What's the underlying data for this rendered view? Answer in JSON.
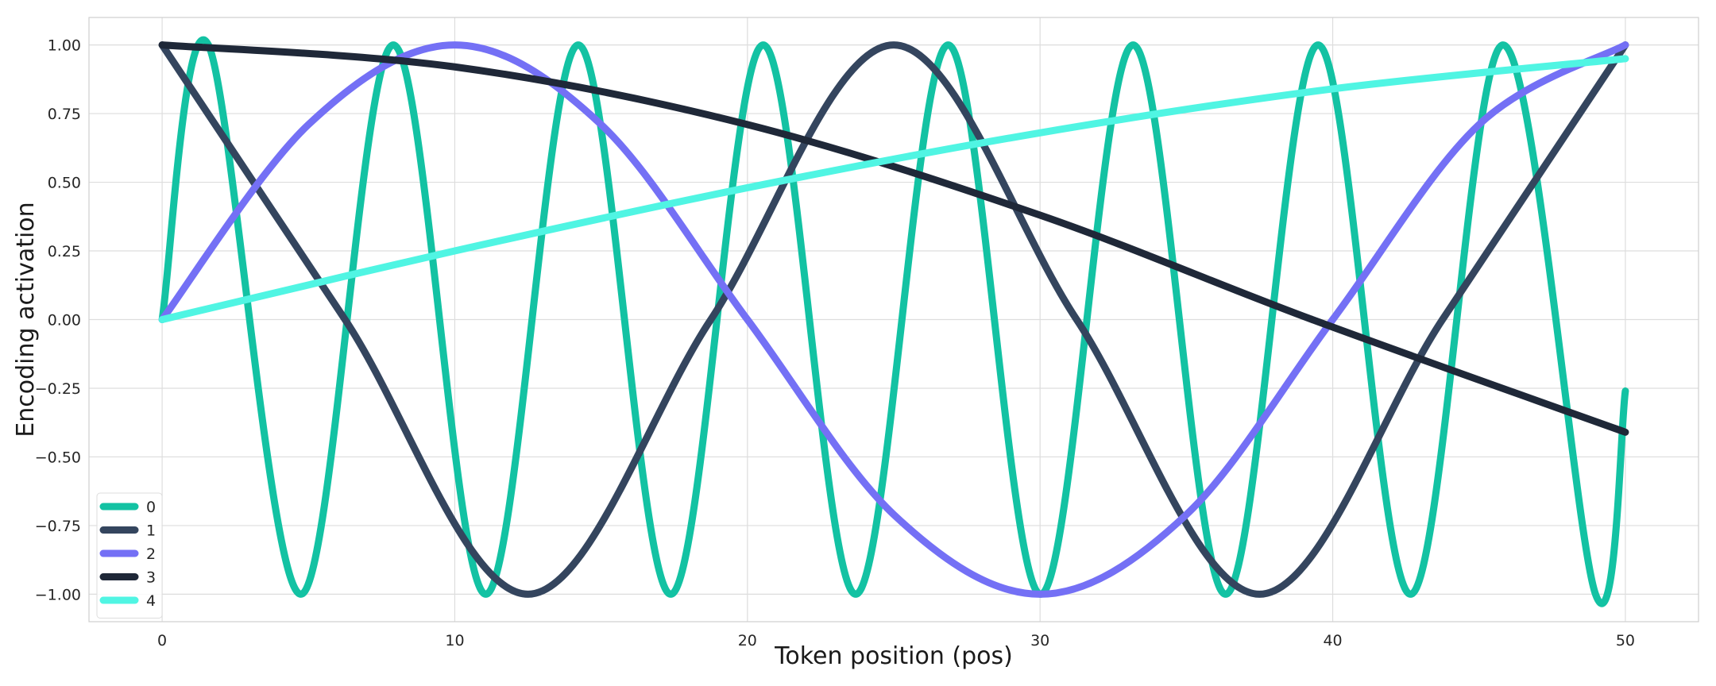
{
  "chart_data": {
    "type": "line",
    "title": "",
    "xlabel": "Token position (pos)",
    "ylabel": "Encoding activation",
    "xlim": [
      -2.5,
      52.5
    ],
    "ylim": [
      -1.1,
      1.1
    ],
    "x_ticks": [
      0,
      10,
      20,
      30,
      40,
      50
    ],
    "y_ticks": [
      1.0,
      0.75,
      0.5,
      0.25,
      0.0,
      -0.25,
      -0.5,
      -0.75,
      -1.0
    ],
    "y_tick_labels": [
      "1.00",
      "0.75",
      "0.50",
      "0.25",
      "0.00",
      "−0.25",
      "−0.50",
      "−0.75",
      "−1.00"
    ],
    "x_range": [
      0,
      50
    ],
    "grid": true,
    "legend_position": "bottom-left",
    "series": [
      {
        "name": "0",
        "color": "#13c2a3",
        "x": [
          0,
          1.58,
          4.74,
          7.9,
          11.06,
          14.22,
          17.38,
          20.54,
          23.7,
          26.86,
          30.02,
          33.18,
          36.34,
          39.5,
          42.66,
          45.82,
          48.98,
          50
        ],
        "y": [
          0.0,
          1.0,
          -1.0,
          1.0,
          -1.0,
          1.0,
          -1.0,
          1.0,
          -1.0,
          1.0,
          -1.0,
          1.0,
          -1.0,
          1.0,
          -1.0,
          1.0,
          -1.0,
          -0.26
        ]
      },
      {
        "name": "1",
        "color": "#34455e",
        "x": [
          0,
          6.25,
          12.5,
          18.75,
          25,
          31.25,
          37.5,
          43.75,
          50
        ],
        "y": [
          1.0,
          0.0,
          -1.0,
          0.0,
          1.0,
          0.0,
          -1.0,
          0.0,
          1.0
        ]
      },
      {
        "name": "2",
        "color": "#7470f5",
        "x": [
          0,
          5,
          10,
          15,
          20,
          25,
          30,
          35,
          40,
          45,
          50
        ],
        "y": [
          0.0,
          0.71,
          1.0,
          0.71,
          0.0,
          -0.71,
          -1.0,
          -0.71,
          0.0,
          0.71,
          1.0
        ]
      },
      {
        "name": "3",
        "color": "#1f2838",
        "x": [
          0,
          10,
          20,
          30,
          39.3,
          50
        ],
        "y": [
          1.0,
          0.92,
          0.71,
          0.38,
          0.0,
          -0.41
        ]
      },
      {
        "name": "4",
        "color": "#50f5e3",
        "x": [
          0,
          10,
          20,
          30,
          40,
          50
        ],
        "y": [
          0.0,
          0.25,
          0.48,
          0.68,
          0.84,
          0.95
        ]
      }
    ]
  }
}
